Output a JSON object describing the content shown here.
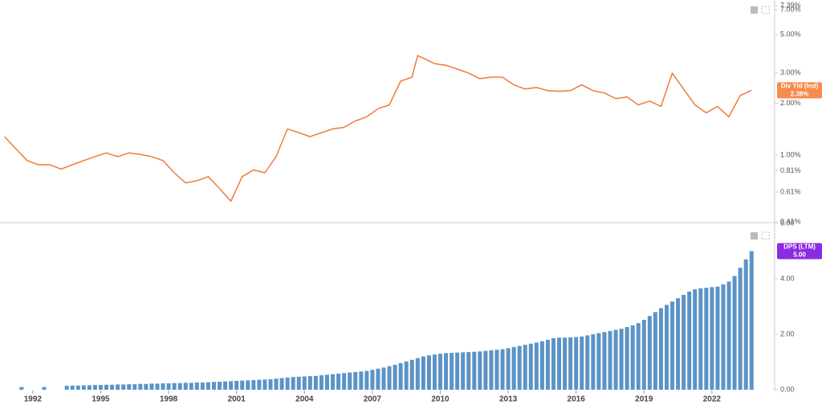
{
  "chart_data": [
    {
      "type": "line",
      "log_scale": true,
      "xlim": [
        1990.55,
        2024.77
      ],
      "ylim": [
        0.41,
        7.39
      ],
      "yticks": [
        {
          "value": 7.39,
          "label": "7.39%"
        },
        {
          "value": 7,
          "label": "7.00%"
        },
        {
          "value": 5,
          "label": "5.00%"
        },
        {
          "value": 3,
          "label": "3.00%"
        },
        {
          "value": 2,
          "label": "2.00%"
        },
        {
          "value": 1,
          "label": "1.00%"
        },
        {
          "value": 0.81,
          "label": "0.81%"
        },
        {
          "value": 0.61,
          "label": "0.61%"
        },
        {
          "value": 0.41,
          "label": "0.41%"
        }
      ],
      "x": [
        1990.75,
        1991.25,
        1991.75,
        1992.25,
        1992.75,
        1993.25,
        1993.75,
        1994.25,
        1994.75,
        1995.25,
        1995.75,
        1996.25,
        1996.75,
        1997.25,
        1997.75,
        1998.25,
        1998.75,
        1999.25,
        1999.75,
        2000.25,
        2000.75,
        2001.25,
        2001.75,
        2002.25,
        2002.75,
        2003.25,
        2003.75,
        2004.25,
        2004.75,
        2005.25,
        2005.75,
        2006.25,
        2006.75,
        2007.25,
        2007.75,
        2008.25,
        2008.75,
        2009.0,
        2009.75,
        2010.25,
        2010.75,
        2011.25,
        2011.75,
        2012.25,
        2012.75,
        2013.25,
        2013.75,
        2014.25,
        2014.75,
        2015.25,
        2015.75,
        2016.25,
        2016.75,
        2017.25,
        2017.75,
        2018.25,
        2018.75,
        2019.25,
        2019.75,
        2020.25,
        2020.75,
        2021.25,
        2021.75,
        2022.25,
        2022.75,
        2023.25,
        2023.75
      ],
      "series": [
        {
          "name": "Div Yld (Ind)",
          "color": "#f07a3a",
          "last_label": "2.38%",
          "values": [
            1.28,
            1.09,
            0.93,
            0.88,
            0.88,
            0.83,
            0.88,
            0.93,
            0.98,
            1.03,
            0.98,
            1.03,
            1.01,
            0.98,
            0.93,
            0.79,
            0.69,
            0.71,
            0.75,
            0.64,
            0.54,
            0.75,
            0.82,
            0.79,
            0.98,
            1.42,
            1.35,
            1.28,
            1.35,
            1.42,
            1.45,
            1.58,
            1.67,
            1.86,
            1.96,
            2.69,
            2.84,
            3.79,
            3.4,
            3.33,
            3.16,
            3.0,
            2.78,
            2.84,
            2.84,
            2.56,
            2.42,
            2.47,
            2.37,
            2.35,
            2.37,
            2.56,
            2.37,
            2.3,
            2.13,
            2.18,
            1.96,
            2.06,
            1.92,
            3.0,
            2.42,
            1.96,
            1.76,
            1.92,
            1.67,
            2.22,
            2.38
          ]
        }
      ]
    },
    {
      "type": "bar",
      "xlim": [
        1990.55,
        2024.77
      ],
      "xticks": [
        1992,
        1995,
        1998,
        2001,
        2004,
        2007,
        2010,
        2013,
        2016,
        2019,
        2022
      ],
      "ylim": [
        0,
        6
      ],
      "yticks": [
        {
          "value": 6,
          "label": "6.00"
        },
        {
          "value": 4,
          "label": "4.00"
        },
        {
          "value": 2,
          "label": "2.00"
        },
        {
          "value": 0,
          "label": "0.00"
        }
      ],
      "x": [
        1991.5,
        1992.5,
        1993.5,
        1993.75,
        1994,
        1994.25,
        1994.5,
        1994.75,
        1995,
        1995.25,
        1995.5,
        1995.75,
        1996,
        1996.25,
        1996.5,
        1996.75,
        1997,
        1997.25,
        1997.5,
        1997.75,
        1998,
        1998.25,
        1998.5,
        1998.75,
        1999,
        1999.25,
        1999.5,
        1999.75,
        2000,
        2000.25,
        2000.5,
        2000.75,
        2001,
        2001.25,
        2001.5,
        2001.75,
        2002,
        2002.25,
        2002.5,
        2002.75,
        2003,
        2003.25,
        2003.5,
        2003.75,
        2004,
        2004.25,
        2004.5,
        2004.75,
        2005,
        2005.25,
        2005.5,
        2005.75,
        2006,
        2006.25,
        2006.5,
        2006.75,
        2007,
        2007.25,
        2007.5,
        2007.75,
        2008,
        2008.25,
        2008.5,
        2008.75,
        2009,
        2009.25,
        2009.5,
        2009.75,
        2010,
        2010.25,
        2010.5,
        2010.75,
        2011,
        2011.25,
        2011.5,
        2011.75,
        2012,
        2012.25,
        2012.5,
        2012.75,
        2013,
        2013.25,
        2013.5,
        2013.75,
        2014,
        2014.25,
        2014.5,
        2014.75,
        2015,
        2015.25,
        2015.5,
        2015.75,
        2016,
        2016.25,
        2016.5,
        2016.75,
        2017,
        2017.25,
        2017.5,
        2017.75,
        2018,
        2018.25,
        2018.5,
        2018.75,
        2019,
        2019.25,
        2019.5,
        2019.75,
        2020,
        2020.25,
        2020.5,
        2020.75,
        2021,
        2021.25,
        2021.5,
        2021.75,
        2022,
        2022.25,
        2022.5,
        2022.75,
        2023,
        2023.25,
        2023.5,
        2023.75
      ],
      "series": [
        {
          "name": "DPS (LTM)",
          "color": "#5b93c7",
          "last_label": "5.00",
          "values": [
            0.1,
            0.1,
            0.14,
            0.15,
            0.15,
            0.16,
            0.16,
            0.17,
            0.17,
            0.18,
            0.18,
            0.19,
            0.19,
            0.2,
            0.2,
            0.21,
            0.21,
            0.22,
            0.22,
            0.23,
            0.23,
            0.24,
            0.24,
            0.25,
            0.25,
            0.26,
            0.26,
            0.27,
            0.28,
            0.29,
            0.3,
            0.31,
            0.32,
            0.33,
            0.34,
            0.35,
            0.36,
            0.37,
            0.38,
            0.4,
            0.42,
            0.44,
            0.46,
            0.47,
            0.48,
            0.49,
            0.5,
            0.52,
            0.54,
            0.56,
            0.58,
            0.6,
            0.62,
            0.64,
            0.66,
            0.68,
            0.72,
            0.76,
            0.8,
            0.85,
            0.9,
            0.96,
            1.02,
            1.08,
            1.14,
            1.2,
            1.24,
            1.27,
            1.3,
            1.32,
            1.33,
            1.34,
            1.35,
            1.36,
            1.37,
            1.38,
            1.4,
            1.42,
            1.44,
            1.46,
            1.5,
            1.54,
            1.58,
            1.62,
            1.66,
            1.7,
            1.75,
            1.8,
            1.86,
            1.88,
            1.88,
            1.89,
            1.9,
            1.92,
            1.96,
            2.0,
            2.04,
            2.08,
            2.12,
            2.16,
            2.2,
            2.26,
            2.32,
            2.4,
            2.52,
            2.66,
            2.8,
            2.94,
            3.06,
            3.18,
            3.3,
            3.42,
            3.54,
            3.62,
            3.66,
            3.68,
            3.7,
            3.72,
            3.8,
            3.9,
            4.1,
            4.4,
            4.7,
            5.0
          ]
        }
      ]
    }
  ]
}
